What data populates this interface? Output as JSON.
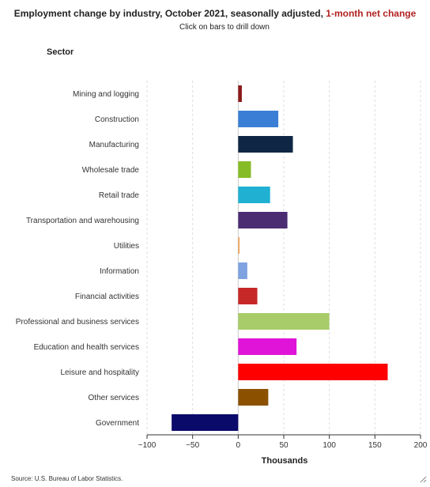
{
  "header": {
    "title_main": "Employment change by industry, October 2021, seasonally adjusted,",
    "title_accent": "1-month net change",
    "subtitle": "Click on bars to drill down"
  },
  "footer": {
    "source": "Source: U.S. Bureau of Labor Statistics."
  },
  "colors": {
    "title_accent": "#b22222",
    "gridline": "#dddddd",
    "axis": "#333333"
  },
  "chart_data": {
    "type": "bar",
    "orientation": "horizontal",
    "title": "Employment change by industry, October 2021, seasonally adjusted, 1-month net change",
    "category_axis_title": "Sector",
    "xlabel": "Thousands",
    "xlim": [
      -100,
      200
    ],
    "xticks": [
      -100,
      -50,
      0,
      50,
      100,
      150,
      200
    ],
    "xtick_labels": [
      "−100",
      "−50",
      "0",
      "50",
      "100",
      "150",
      "200"
    ],
    "grid": "vertical dashed",
    "categories": [
      "Mining and logging",
      "Construction",
      "Manufacturing",
      "Wholesale trade",
      "Retail trade",
      "Transportation and warehousing",
      "Utilities",
      "Information",
      "Financial activities",
      "Professional and business services",
      "Education and health services",
      "Leisure and hospitality",
      "Other services",
      "Government"
    ],
    "values": [
      4,
      44,
      60,
      14,
      35,
      54,
      1.5,
      10,
      21,
      100,
      64,
      164,
      33,
      -73
    ],
    "bar_colors": [
      "#8b1a1a",
      "#3a7fd5",
      "#0f2744",
      "#86bc25",
      "#1fb0d2",
      "#4b2c73",
      "#f0a35a",
      "#7fa3e0",
      "#c62828",
      "#a8cc6a",
      "#e014d8",
      "#ff0000",
      "#8b5000",
      "#0a0a6b"
    ]
  }
}
